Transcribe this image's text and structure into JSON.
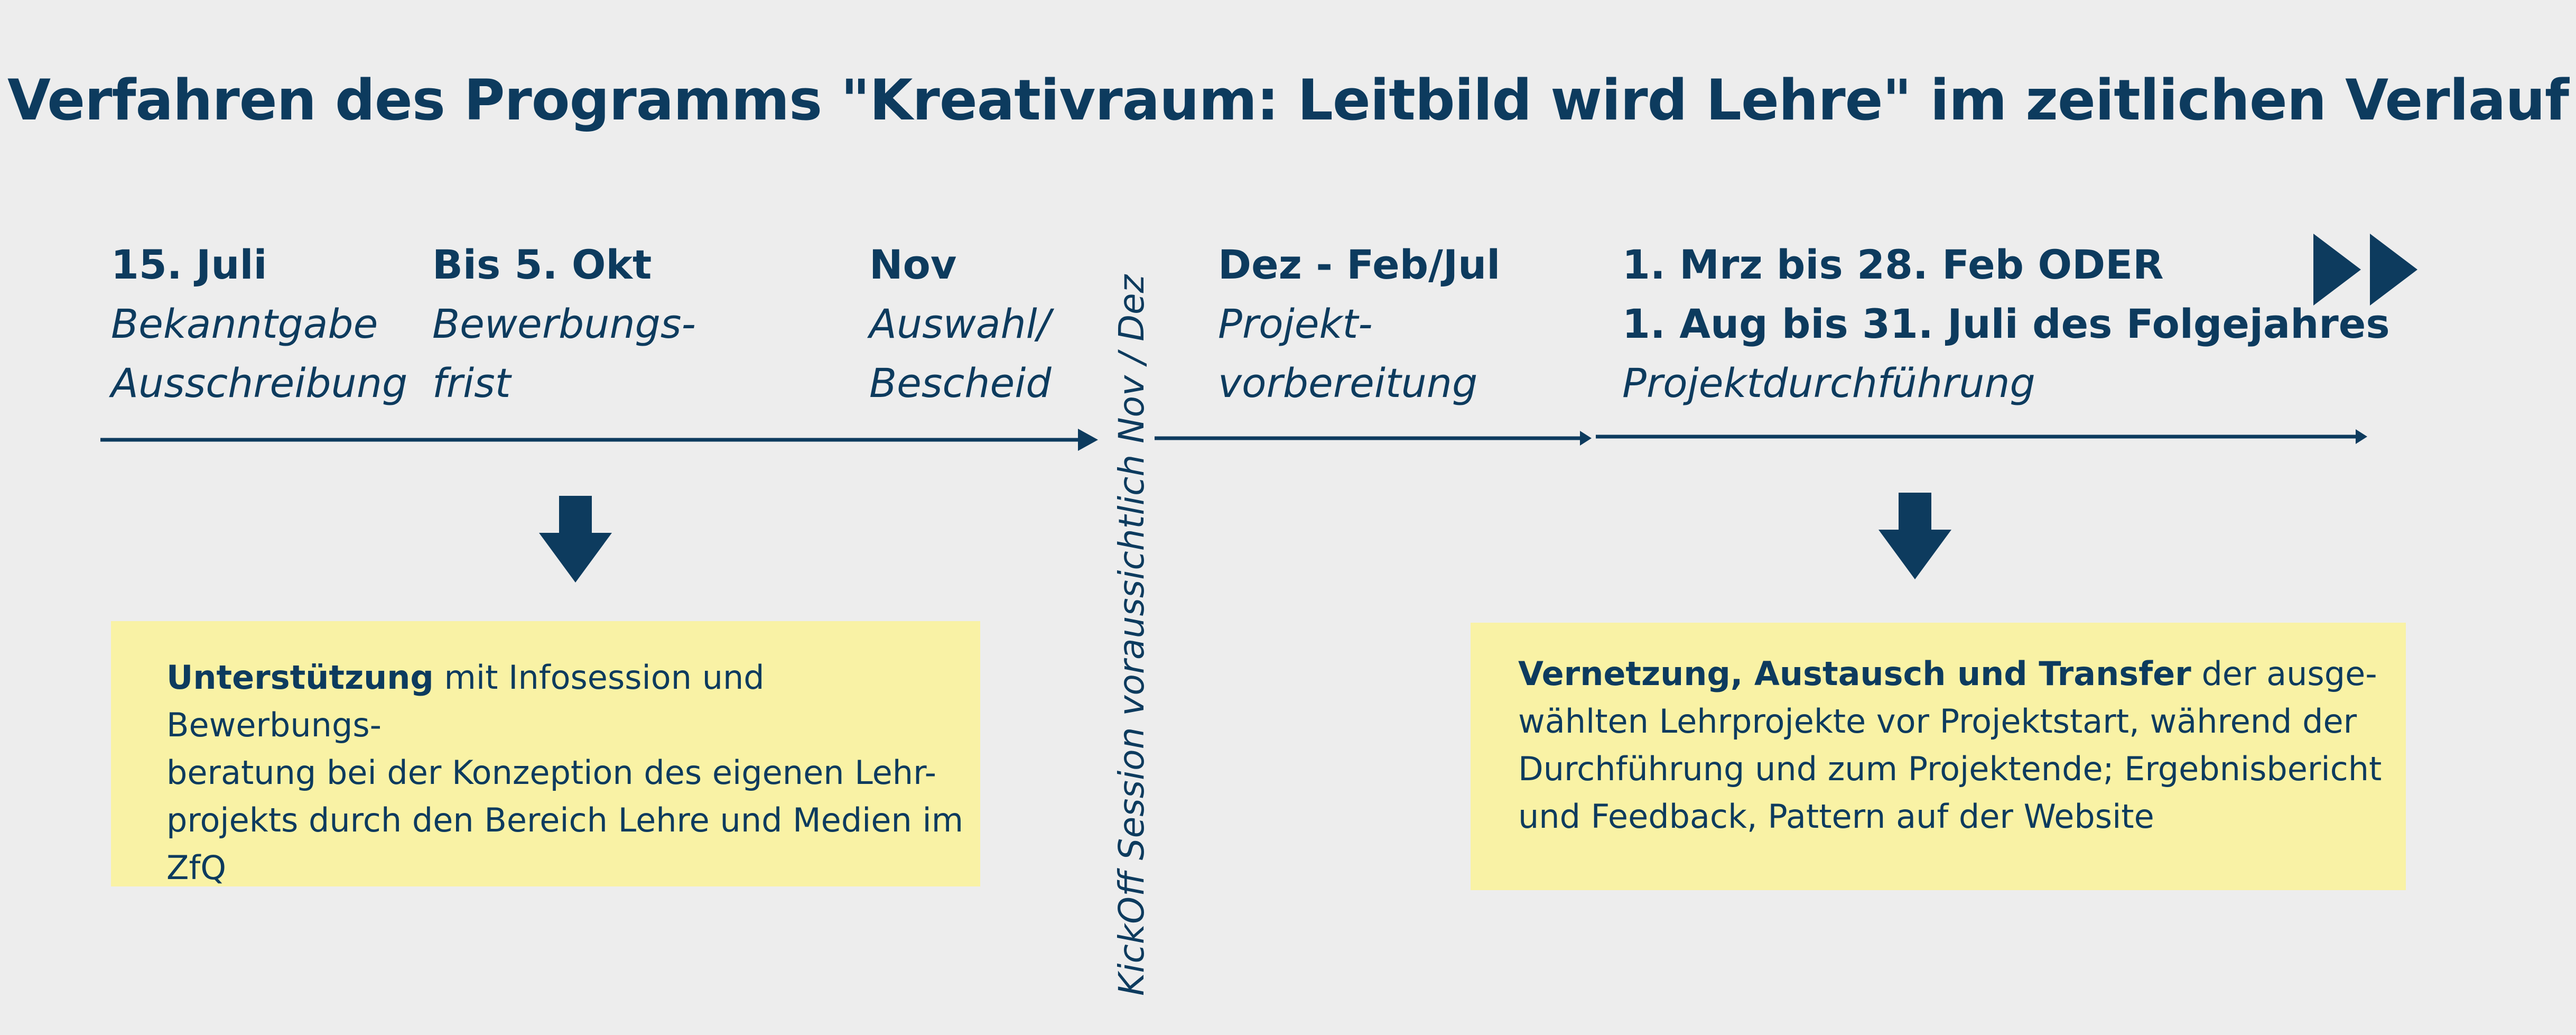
{
  "title": "Verfahren des Programms \"Kreativraum: Leitbild wird Lehre\" im zeitlichen Verlauf",
  "stages": [
    {
      "date": "15. Juli",
      "desc": [
        "Bekanntgabe",
        "Ausschreibung"
      ]
    },
    {
      "date": "Bis 5. Okt",
      "desc": [
        "Bewerbungs-",
        "frist"
      ]
    },
    {
      "date": "Nov",
      "desc": [
        "Auswahl/",
        "Bescheid"
      ]
    },
    {
      "date": "Dez - Feb/Jul",
      "desc": [
        "Projekt-",
        "vorbereitung"
      ]
    },
    {
      "date": [
        "1. Mrz bis 28. Feb ODER",
        "1. Aug bis 31. Juli des Folgejahres"
      ],
      "desc": [
        "Projektdurchführung"
      ]
    }
  ],
  "kickoff": "KickOff Session voraussichtlich Nov / Dez",
  "boxes": {
    "left": {
      "bold": "Unterstützung",
      "lines": [
        " mit Infosession und Bewerbungs-",
        "beratung bei der Konzeption des eigenen Lehr-",
        "projekts durch den Bereich Lehre und Medien im",
        "ZfQ"
      ]
    },
    "right": {
      "bold": "Vernetzung, Austausch und Transfer",
      "lines": [
        " der ausge-",
        "wählten Lehrprojekte vor Projektstart, während der",
        "Durchführung und zum Projektende; Ergebnisbericht",
        "und Feedback, Pattern auf der Website"
      ]
    }
  },
  "colors": {
    "primary": "#0d3b5e",
    "background": "#ededed",
    "box": "#f9f2a5"
  },
  "icons": [
    "timeline-arrow",
    "down-arrow-icon",
    "fast-forward-icon"
  ]
}
